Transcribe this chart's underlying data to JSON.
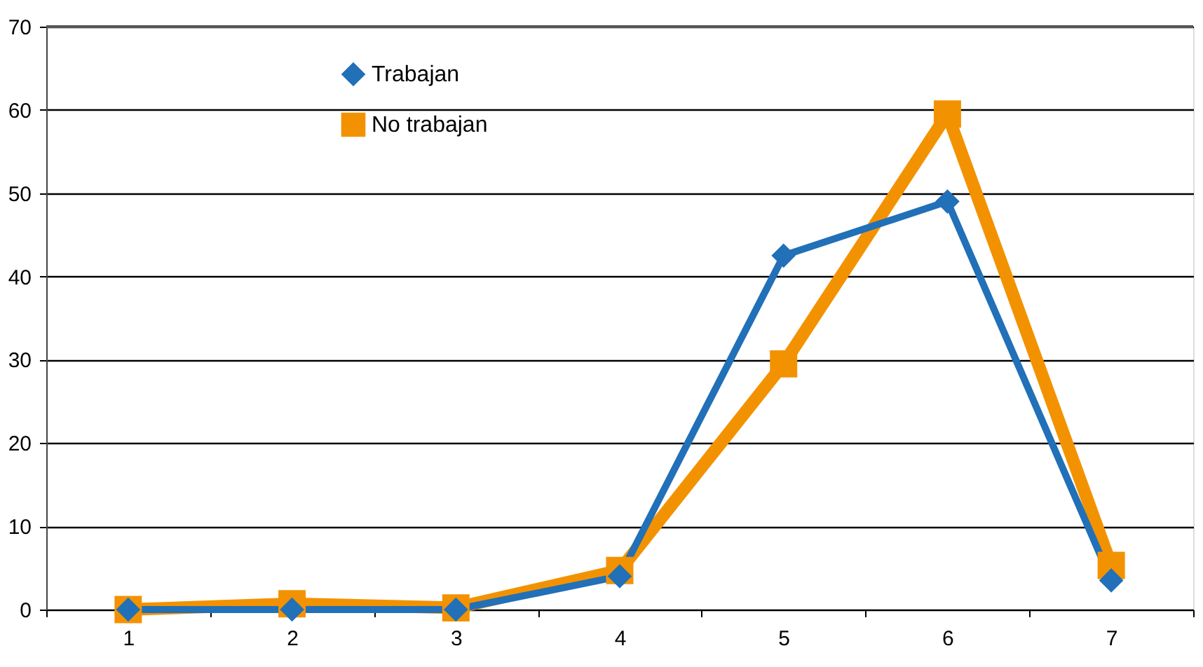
{
  "chart_data": {
    "type": "line",
    "categories": [
      "1",
      "2",
      "3",
      "4",
      "5",
      "6",
      "7"
    ],
    "series": [
      {
        "name": "Trabajan",
        "color": "#2170b8",
        "marker": "diamond",
        "values": [
          0,
          0,
          0,
          4,
          42.5,
          49,
          3.5
        ]
      },
      {
        "name": "No trabajan",
        "color": "#f39200",
        "marker": "square",
        "values": [
          0,
          0.7,
          0.2,
          4.7,
          29.5,
          59.5,
          5.3
        ]
      }
    ],
    "ylim": [
      0,
      70
    ],
    "yticks": [
      0,
      10,
      20,
      30,
      40,
      50,
      60,
      70
    ],
    "grid": "y",
    "legend": "top left",
    "line_style": "solid"
  }
}
